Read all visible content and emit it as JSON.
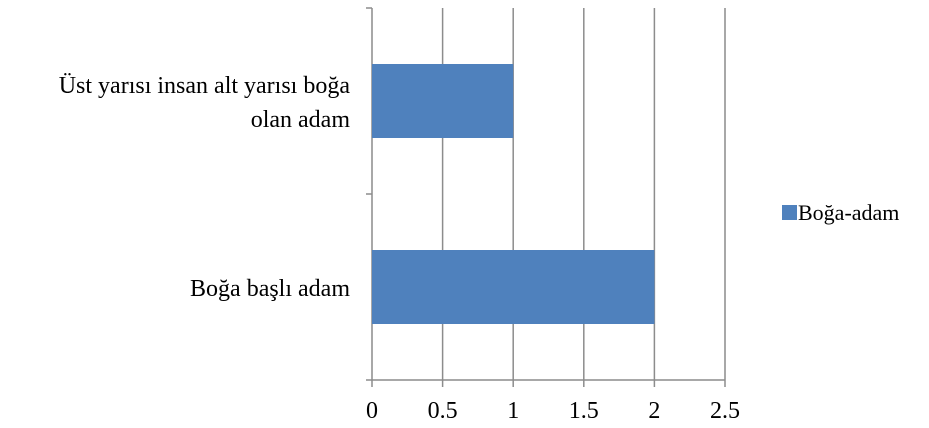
{
  "chart_data": {
    "type": "bar",
    "orientation": "horizontal",
    "categories": [
      [
        "Üst yarısı insan alt yarısı boğa",
        "olan adam"
      ],
      [
        "Boğa başlı adam"
      ]
    ],
    "series": [
      {
        "name": "Boğa-adam",
        "values": [
          1,
          2
        ],
        "color": "#4F81BD"
      }
    ],
    "xlim": [
      0,
      2.5
    ],
    "xticks": [
      "0",
      "0.5",
      "1",
      "1.5",
      "2",
      "2.5"
    ],
    "grid": true,
    "legend": "right"
  }
}
